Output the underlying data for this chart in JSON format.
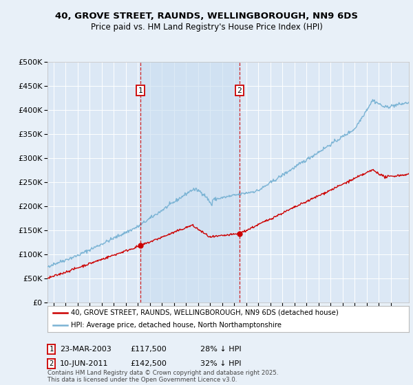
{
  "title_line1": "40, GROVE STREET, RAUNDS, WELLINGBOROUGH, NN9 6DS",
  "title_line2": "Price paid vs. HM Land Registry's House Price Index (HPI)",
  "hpi_label": "HPI: Average price, detached house, North Northamptonshire",
  "property_label": "40, GROVE STREET, RAUNDS, WELLINGBOROUGH, NN9 6DS (detached house)",
  "sale1_date": "23-MAR-2003",
  "sale1_price": 117500,
  "sale1_hpi_diff": "28% ↓ HPI",
  "sale2_date": "10-JUN-2011",
  "sale2_price": 142500,
  "sale2_hpi_diff": "32% ↓ HPI",
  "sale1_year": 2003.22,
  "sale2_year": 2011.44,
  "hpi_color": "#7ab3d4",
  "property_color": "#cc0000",
  "annotation_box_color": "#cc0000",
  "background_color": "#e8f0f8",
  "plot_bg_color": "#dce8f5",
  "shade_color": "#c8ddf0",
  "grid_color": "#ffffff",
  "ylim": [
    0,
    500000
  ],
  "xlim": [
    1995.5,
    2025.5
  ],
  "yticks": [
    0,
    50000,
    100000,
    150000,
    200000,
    250000,
    300000,
    350000,
    400000,
    450000,
    500000
  ],
  "xtick_start": 1996,
  "xtick_end": 2024,
  "copyright_text": "Contains HM Land Registry data © Crown copyright and database right 2025.\nThis data is licensed under the Open Government Licence v3.0."
}
